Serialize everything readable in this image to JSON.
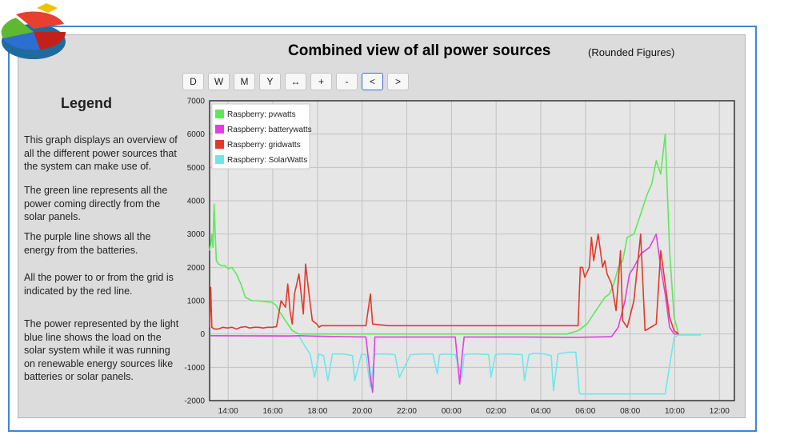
{
  "header": {
    "title": "Combined view of all power sources",
    "subtitle": "(Rounded Figures)"
  },
  "toolbar": {
    "buttons": [
      {
        "label": "D",
        "active": false
      },
      {
        "label": "W",
        "active": false
      },
      {
        "label": "M",
        "active": false
      },
      {
        "label": "Y",
        "active": false
      },
      {
        "label": "↔",
        "active": false
      },
      {
        "label": "+",
        "active": false
      },
      {
        "label": "-",
        "active": false
      },
      {
        "label": "<",
        "active": true
      },
      {
        "label": ">",
        "active": false
      }
    ]
  },
  "legend_panel": {
    "title": "Legend",
    "paragraphs": [
      "This graph displays an overview of all the different power sources that the system can make use of.",
      "The green line represents all the power coming directly from the solar panels.",
      "The purple line shows all the energy from the batteries.",
      "All the power to or from the grid is indicated by the red line.",
      "The power represented by the light blue line shows the load on the solar system while it was running on renewable energy sources like batteries or solar panels."
    ]
  },
  "logo": {
    "icon": "pie-chart-logo-icon"
  },
  "chart_data": {
    "type": "line",
    "x_unit": "hours since 13:00 (axis labels shown as clock times)",
    "x_range": [
      0.0,
      23.5
    ],
    "x_tick_values": [
      0.83,
      2.83,
      4.83,
      6.83,
      8.83,
      10.83,
      12.83,
      14.83,
      16.83,
      18.83,
      20.83,
      22.83
    ],
    "x_tick_labels": [
      "14:00",
      "16:00",
      "18:00",
      "20:00",
      "22:00",
      "00:00",
      "02:00",
      "04:00",
      "06:00",
      "08:00",
      "10:00",
      "12:00"
    ],
    "ylim": [
      -2000,
      7000
    ],
    "y_ticks": [
      -2000,
      -1000,
      0,
      1000,
      2000,
      3000,
      4000,
      5000,
      6000,
      7000
    ],
    "grid": true,
    "legend_position": "top-left",
    "series": [
      {
        "name": "Raspberry: pvwatts",
        "color": "#5ee85a",
        "x": [
          0.0,
          0.05,
          0.1,
          0.15,
          0.2,
          0.3,
          0.4,
          0.55,
          0.7,
          0.85,
          1.0,
          1.2,
          1.4,
          1.6,
          1.9,
          2.1,
          2.4,
          2.8,
          3.0,
          3.1,
          3.3,
          3.5,
          3.7,
          4.0,
          4.2,
          4.4,
          4.6,
          4.8,
          5.0,
          5.2,
          5.4,
          6.0,
          8.0,
          10.0,
          12.0,
          14.0,
          16.0,
          16.5,
          16.7,
          16.9,
          17.1,
          17.4,
          17.7,
          17.9,
          18.1,
          18.3,
          18.5,
          18.7,
          19.0,
          19.3,
          19.6,
          19.8,
          20.0,
          20.2,
          20.4,
          20.6,
          20.8,
          21.0
        ],
        "y": [
          2500,
          2700,
          3000,
          2600,
          3900,
          2200,
          2100,
          2050,
          2050,
          1950,
          2000,
          1800,
          1500,
          1100,
          1000,
          1000,
          980,
          950,
          850,
          700,
          500,
          300,
          100,
          0,
          0,
          0,
          0,
          0,
          0,
          0,
          0,
          0,
          0,
          0,
          0,
          0,
          0,
          100,
          200,
          300,
          500,
          800,
          1100,
          1200,
          1500,
          2000,
          2200,
          2900,
          3000,
          3600,
          4200,
          4500,
          5200,
          4800,
          6000,
          2500,
          500,
          0
        ]
      },
      {
        "name": "Raspberry: batterywatts",
        "color": "#e040e0",
        "x": [
          0.0,
          3.5,
          4.0,
          5.0,
          6.0,
          7.0,
          7.2,
          7.3,
          7.4,
          8.0,
          10.0,
          11.0,
          11.2,
          11.3,
          11.4,
          12.0,
          14.0,
          16.0,
          16.5,
          18.0,
          18.3,
          18.6,
          18.8,
          19.0,
          19.3,
          19.7,
          20.0,
          20.2,
          20.4,
          20.6,
          20.8,
          21.0
        ],
        "y": [
          -50,
          -60,
          -50,
          -70,
          -80,
          -90,
          -1300,
          -1750,
          -90,
          -90,
          -90,
          -90,
          -1500,
          -700,
          -90,
          -90,
          -90,
          -100,
          -100,
          -80,
          200,
          1000,
          1800,
          2000,
          2400,
          2600,
          3000,
          2000,
          1200,
          200,
          0,
          0
        ]
      },
      {
        "name": "Raspberry: gridwatts",
        "color": "#e03a2a",
        "x": [
          0.0,
          0.05,
          0.1,
          0.2,
          0.4,
          0.6,
          0.8,
          1.0,
          1.2,
          1.4,
          1.6,
          1.8,
          2.0,
          2.2,
          2.4,
          2.6,
          2.8,
          3.0,
          3.2,
          3.4,
          3.5,
          3.6,
          3.7,
          3.8,
          4.0,
          4.2,
          4.3,
          4.4,
          4.6,
          4.8,
          4.9,
          5.0,
          5.05,
          5.4,
          6.0,
          7.0,
          7.2,
          7.3,
          8.0,
          9.0,
          10.0,
          11.0,
          12.0,
          13.0,
          14.0,
          15.0,
          16.0,
          16.5,
          16.6,
          16.7,
          16.8,
          17.0,
          17.1,
          17.2,
          17.4,
          17.6,
          17.7,
          17.8,
          18.0,
          18.2,
          18.4,
          18.5,
          18.7,
          19.0,
          19.3,
          19.5,
          20.0,
          20.2,
          20.4,
          20.6,
          20.8,
          21.0
        ],
        "y": [
          200,
          1400,
          200,
          150,
          150,
          200,
          180,
          200,
          150,
          200,
          220,
          180,
          200,
          200,
          180,
          200,
          200,
          220,
          1000,
          800,
          1500,
          700,
          300,
          1200,
          1800,
          600,
          2100,
          1500,
          400,
          300,
          200,
          250,
          250,
          250,
          250,
          250,
          1200,
          300,
          250,
          250,
          250,
          250,
          250,
          250,
          250,
          250,
          250,
          250,
          2000,
          2000,
          1700,
          2000,
          2900,
          2200,
          3000,
          2000,
          2200,
          1800,
          1500,
          700,
          2500,
          400,
          200,
          1000,
          3000,
          100,
          300,
          2500,
          1500,
          500,
          100,
          0
        ]
      },
      {
        "name": "Raspberry: SolarWatts",
        "color": "#6fe6ec",
        "x": [
          0.0,
          1.0,
          2.0,
          3.0,
          4.0,
          4.3,
          4.5,
          4.7,
          4.9,
          5.1,
          5.3,
          5.5,
          5.6,
          6.0,
          6.4,
          6.5,
          6.8,
          7.0,
          7.2,
          7.4,
          8.0,
          8.3,
          8.5,
          9.0,
          9.5,
          10.0,
          10.2,
          10.3,
          10.5,
          11.0,
          11.3,
          11.4,
          11.6,
          12.0,
          12.5,
          12.6,
          12.8,
          13.0,
          13.5,
          14.0,
          14.1,
          14.3,
          14.5,
          15.0,
          15.3,
          15.4,
          15.6,
          16.0,
          16.4,
          16.5,
          16.55,
          16.6,
          17.0,
          18.0,
          19.0,
          19.4,
          20.0,
          20.4,
          20.8,
          21.0,
          22.0
        ],
        "y": [
          -50,
          -50,
          -50,
          -50,
          -60,
          -400,
          -600,
          -1300,
          -600,
          -650,
          -1400,
          -600,
          -600,
          -600,
          -650,
          -1400,
          -600,
          -620,
          -1600,
          -600,
          -600,
          -620,
          -1300,
          -620,
          -600,
          -600,
          -1200,
          -620,
          -600,
          -620,
          -1300,
          -620,
          -600,
          -600,
          -620,
          -1300,
          -620,
          -600,
          -600,
          -620,
          -1400,
          -620,
          -580,
          -600,
          -650,
          -1700,
          -600,
          -550,
          -550,
          -1300,
          -1750,
          -1800,
          -1800,
          -1800,
          -1800,
          -1800,
          -1800,
          -1800,
          -100,
          -30,
          -30
        ]
      }
    ]
  }
}
